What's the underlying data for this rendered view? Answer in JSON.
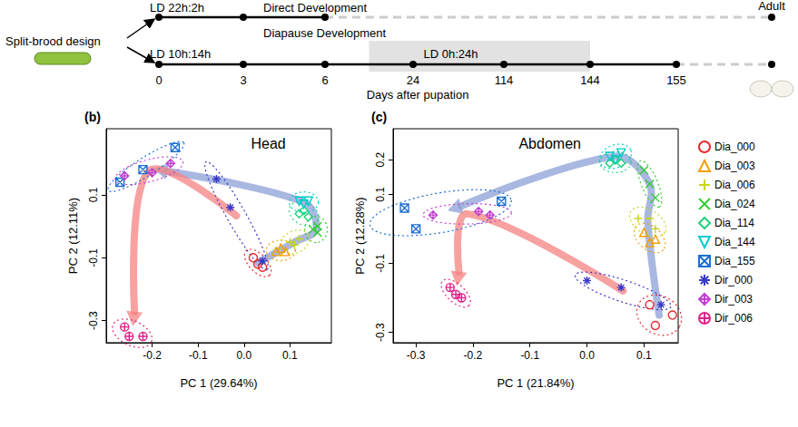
{
  "timeline": {
    "label": "Split-brood design",
    "direct": {
      "condition": "LD 22h:2h",
      "phase": "Direct Development",
      "days": [
        0,
        3,
        6
      ]
    },
    "diapause": {
      "condition": "LD 10h:14h",
      "phase": "Diapause Development",
      "days": [
        0,
        3,
        6,
        24,
        114,
        144,
        155
      ],
      "dark": {
        "condition": "LD 0h:24h",
        "end": 144
      }
    },
    "axis_label": "Days after pupation",
    "end": "Adult"
  },
  "chart_data": [
    {
      "type": "scatter",
      "panel_label": "(b)",
      "title": "Head",
      "xlabel": "PC 1 (29.64%)",
      "ylabel": "PC 2 (12.11%)",
      "xlim": [
        -0.3,
        0.19
      ],
      "xticks": [
        -0.2,
        -0.1,
        {
          "value": 0,
          "label": "0.0"
        },
        0.1
      ],
      "ylim": [
        -0.37,
        0.31
      ],
      "yticks": [
        -0.3,
        -0.1,
        0.1
      ],
      "grid": false,
      "series": [
        {
          "name": "Dia_000",
          "color": "#e8282b",
          "marker": "circle",
          "values": [
            [
              0.02,
              -0.1
            ],
            [
              0.03,
              -0.12
            ],
            [
              0.04,
              -0.13
            ]
          ]
        },
        {
          "name": "Dia_003",
          "color": "#f0a000",
          "marker": "triangle",
          "values": [
            [
              0.07,
              -0.08
            ],
            [
              0.08,
              -0.07
            ],
            [
              0.09,
              -0.08
            ]
          ]
        },
        {
          "name": "Dia_006",
          "color": "#c8d41e",
          "marker": "plus",
          "values": [
            [
              0.1,
              -0.05
            ],
            [
              0.12,
              -0.04
            ],
            [
              0.11,
              -0.06
            ]
          ]
        },
        {
          "name": "Dia_024",
          "color": "#33cc33",
          "marker": "x",
          "values": [
            [
              0.15,
              -0.01
            ],
            [
              0.16,
              0.0
            ],
            [
              0.16,
              -0.02
            ]
          ]
        },
        {
          "name": "Dia_114",
          "color": "#1fd17a",
          "marker": "diamond",
          "values": [
            [
              0.12,
              0.04
            ],
            [
              0.13,
              0.05
            ],
            [
              0.14,
              0.03
            ]
          ]
        },
        {
          "name": "Dia_144",
          "color": "#00cccc",
          "marker": "triangle_down",
          "values": [
            [
              0.12,
              0.08
            ],
            [
              0.13,
              0.07
            ],
            [
              0.14,
              0.08
            ]
          ]
        },
        {
          "name": "Dia_155",
          "color": "#1f6fd0",
          "marker": "square_x",
          "values": [
            [
              -0.27,
              0.14
            ],
            [
              -0.22,
              0.18
            ],
            [
              -0.15,
              0.25
            ]
          ]
        },
        {
          "name": "Dir_000",
          "color": "#3a3ac8",
          "marker": "asterisk",
          "values": [
            [
              -0.06,
              0.15
            ],
            [
              -0.03,
              0.06
            ],
            [
              0.04,
              -0.11
            ]
          ]
        },
        {
          "name": "Dir_003",
          "color": "#c040d0",
          "marker": "diamond_plus",
          "values": [
            [
              -0.26,
              0.16
            ],
            [
              -0.2,
              0.17
            ],
            [
              -0.16,
              0.2
            ]
          ]
        },
        {
          "name": "Dir_006",
          "color": "#e0208a",
          "marker": "circle_plus",
          "values": [
            [
              -0.26,
              -0.32
            ],
            [
              -0.25,
              -0.35
            ],
            [
              -0.22,
              -0.35
            ]
          ]
        }
      ]
    },
    {
      "type": "scatter",
      "panel_label": "(c)",
      "title": "Abdomen",
      "xlabel": "PC 1 (21.84%)",
      "ylabel": "PC 2 (12.28%)",
      "xlim": [
        -0.34,
        0.16
      ],
      "xticks": [
        -0.3,
        -0.2,
        -0.1,
        {
          "value": 0,
          "label": "0.0"
        },
        0.1
      ],
      "ylim": [
        -0.33,
        0.29
      ],
      "yticks": [
        -0.3,
        -0.1,
        0.1,
        0.2
      ],
      "grid": false,
      "legend": "right",
      "series": [
        {
          "name": "Dia_000",
          "color": "#e8282b",
          "marker": "circle",
          "values": [
            [
              0.11,
              -0.22
            ],
            [
              0.15,
              -0.25
            ],
            [
              0.12,
              -0.28
            ]
          ]
        },
        {
          "name": "Dia_003",
          "color": "#f0a000",
          "marker": "triangle",
          "values": [
            [
              0.1,
              -0.01
            ],
            [
              0.11,
              -0.04
            ],
            [
              0.12,
              -0.03
            ]
          ]
        },
        {
          "name": "Dia_006",
          "color": "#c8d41e",
          "marker": "plus",
          "values": [
            [
              0.09,
              0.03
            ],
            [
              0.11,
              0.03
            ],
            [
              0.12,
              0.0
            ]
          ]
        },
        {
          "name": "Dia_024",
          "color": "#33cc33",
          "marker": "x",
          "values": [
            [
              0.1,
              0.17
            ],
            [
              0.11,
              0.13
            ],
            [
              0.12,
              0.09
            ]
          ]
        },
        {
          "name": "Dia_114",
          "color": "#1fd17a",
          "marker": "diamond",
          "values": [
            [
              0.04,
              0.19
            ],
            [
              0.05,
              0.2
            ],
            [
              0.06,
              0.19
            ]
          ]
        },
        {
          "name": "Dia_144",
          "color": "#00cccc",
          "marker": "triangle_down",
          "values": [
            [
              0.04,
              0.21
            ],
            [
              0.05,
              0.2
            ],
            [
              0.06,
              0.22
            ]
          ]
        },
        {
          "name": "Dia_155",
          "color": "#1f6fd0",
          "marker": "square_x",
          "values": [
            [
              -0.32,
              0.06
            ],
            [
              -0.3,
              0.0
            ],
            [
              -0.15,
              0.08
            ]
          ]
        },
        {
          "name": "Dir_000",
          "color": "#3a3ac8",
          "marker": "asterisk",
          "values": [
            [
              0.0,
              -0.15
            ],
            [
              0.06,
              -0.17
            ],
            [
              0.13,
              -0.22
            ]
          ]
        },
        {
          "name": "Dir_003",
          "color": "#c040d0",
          "marker": "diamond_plus",
          "values": [
            [
              -0.27,
              0.04
            ],
            [
              -0.19,
              0.05
            ],
            [
              -0.17,
              0.04
            ]
          ]
        },
        {
          "name": "Dir_006",
          "color": "#e0208a",
          "marker": "circle_plus",
          "values": [
            [
              -0.24,
              -0.17
            ],
            [
              -0.23,
              -0.19
            ],
            [
              -0.22,
              -0.2
            ]
          ]
        }
      ]
    }
  ]
}
